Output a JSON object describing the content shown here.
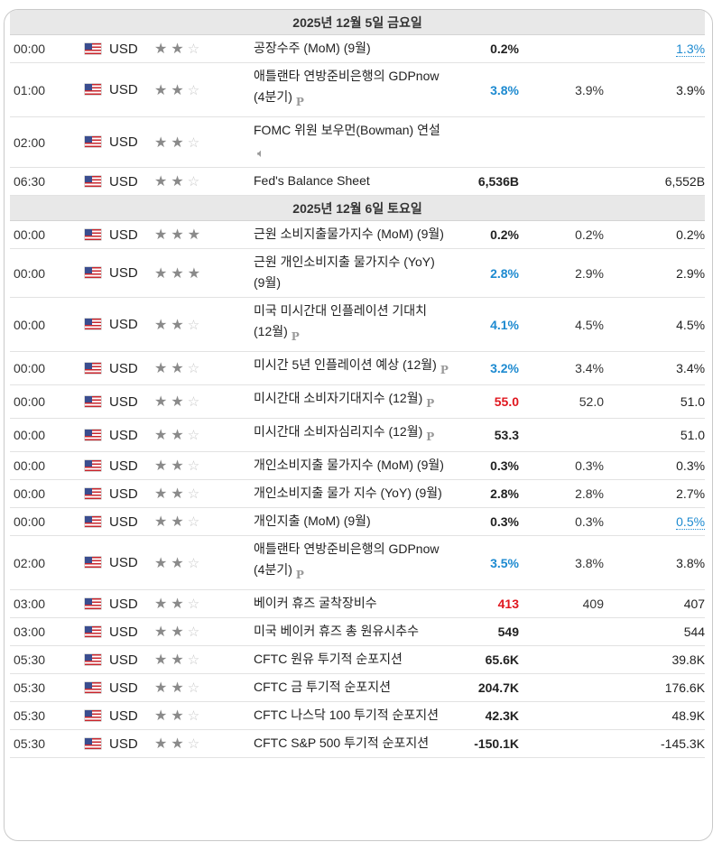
{
  "days": [
    {
      "label": "2025년 12월 5일 금요일",
      "events": [
        {
          "time": "00:00",
          "currency": "USD",
          "stars": 2,
          "name": "공장수주 (MoM) (9월)",
          "marker": "",
          "actual": "0.2%",
          "actual_color": "black",
          "forecast": "",
          "previous": "1.3%",
          "previous_revised": true
        },
        {
          "time": "01:00",
          "currency": "USD",
          "stars": 2,
          "name": "애틀랜타 연방준비은행의 GDPnow (4분기)",
          "marker": "P",
          "actual": "3.8%",
          "actual_color": "blue",
          "forecast": "3.9%",
          "previous": "3.9%",
          "previous_revised": false
        },
        {
          "time": "02:00",
          "currency": "USD",
          "stars": 2,
          "name": "FOMC 위원 보우먼(Bowman) 연설",
          "marker": "speaker",
          "actual": "",
          "actual_color": "black",
          "forecast": "",
          "previous": "",
          "previous_revised": false
        },
        {
          "time": "06:30",
          "currency": "USD",
          "stars": 2,
          "name": "Fed's Balance Sheet",
          "marker": "",
          "actual": "6,536B",
          "actual_color": "black",
          "forecast": "",
          "previous": "6,552B",
          "previous_revised": false
        }
      ]
    },
    {
      "label": "2025년 12월 6일 토요일",
      "events": [
        {
          "time": "00:00",
          "currency": "USD",
          "stars": 3,
          "name": "근원 소비지출물가지수 (MoM) (9월)",
          "marker": "",
          "actual": "0.2%",
          "actual_color": "black",
          "forecast": "0.2%",
          "previous": "0.2%",
          "previous_revised": false
        },
        {
          "time": "00:00",
          "currency": "USD",
          "stars": 3,
          "name": "근원 개인소비지출 물가지수 (YoY) (9월)",
          "marker": "",
          "actual": "2.8%",
          "actual_color": "blue",
          "forecast": "2.9%",
          "previous": "2.9%",
          "previous_revised": false
        },
        {
          "time": "00:00",
          "currency": "USD",
          "stars": 2,
          "name": "미국 미시간대 인플레이션 기대치 (12월)",
          "marker": "P",
          "actual": "4.1%",
          "actual_color": "blue",
          "forecast": "4.5%",
          "previous": "4.5%",
          "previous_revised": false
        },
        {
          "time": "00:00",
          "currency": "USD",
          "stars": 2,
          "name": "미시간 5년 인플레이션 예상 (12월)",
          "marker": "P",
          "actual": "3.2%",
          "actual_color": "blue",
          "forecast": "3.4%",
          "previous": "3.4%",
          "previous_revised": false
        },
        {
          "time": "00:00",
          "currency": "USD",
          "stars": 2,
          "name": "미시간대 소비자기대지수 (12월)",
          "marker": "P",
          "actual": "55.0",
          "actual_color": "red",
          "forecast": "52.0",
          "previous": "51.0",
          "previous_revised": false
        },
        {
          "time": "00:00",
          "currency": "USD",
          "stars": 2,
          "name": "미시간대 소비자심리지수 (12월)",
          "marker": "P",
          "actual": "53.3",
          "actual_color": "black",
          "forecast": "",
          "previous": "51.0",
          "previous_revised": false
        },
        {
          "time": "00:00",
          "currency": "USD",
          "stars": 2,
          "name": "개인소비지출 물가지수 (MoM) (9월)",
          "marker": "",
          "actual": "0.3%",
          "actual_color": "black",
          "forecast": "0.3%",
          "previous": "0.3%",
          "previous_revised": false
        },
        {
          "time": "00:00",
          "currency": "USD",
          "stars": 2,
          "name": "개인소비지출 물가 지수 (YoY) (9월)",
          "marker": "",
          "actual": "2.8%",
          "actual_color": "black",
          "forecast": "2.8%",
          "previous": "2.7%",
          "previous_revised": false
        },
        {
          "time": "00:00",
          "currency": "USD",
          "stars": 2,
          "name": "개인지출 (MoM) (9월)",
          "marker": "",
          "actual": "0.3%",
          "actual_color": "black",
          "forecast": "0.3%",
          "previous": "0.5%",
          "previous_revised": true
        },
        {
          "time": "02:00",
          "currency": "USD",
          "stars": 2,
          "name": "애틀랜타 연방준비은행의 GDPnow (4분기)",
          "marker": "P",
          "actual": "3.5%",
          "actual_color": "blue",
          "forecast": "3.8%",
          "previous": "3.8%",
          "previous_revised": false
        },
        {
          "time": "03:00",
          "currency": "USD",
          "stars": 2,
          "name": "베이커 휴즈 굴착장비수",
          "marker": "",
          "actual": "413",
          "actual_color": "red",
          "forecast": "409",
          "previous": "407",
          "previous_revised": false
        },
        {
          "time": "03:00",
          "currency": "USD",
          "stars": 2,
          "name": "미국 베이커 휴즈 총 원유시추수",
          "marker": "",
          "actual": "549",
          "actual_color": "black",
          "forecast": "",
          "previous": "544",
          "previous_revised": false
        },
        {
          "time": "05:30",
          "currency": "USD",
          "stars": 2,
          "name": "CFTC 원유 투기적 순포지션",
          "marker": "",
          "actual": "65.6K",
          "actual_color": "black",
          "forecast": "",
          "previous": "39.8K",
          "previous_revised": false
        },
        {
          "time": "05:30",
          "currency": "USD",
          "stars": 2,
          "name": "CFTC 금 투기적 순포지션",
          "marker": "",
          "actual": "204.7K",
          "actual_color": "black",
          "forecast": "",
          "previous": "176.6K",
          "previous_revised": false
        },
        {
          "time": "05:30",
          "currency": "USD",
          "stars": 2,
          "name": "CFTC 나스닥 100 투기적 순포지션",
          "marker": "",
          "actual": "42.3K",
          "actual_color": "black",
          "forecast": "",
          "previous": "48.9K",
          "previous_revised": false
        },
        {
          "time": "05:30",
          "currency": "USD",
          "stars": 2,
          "name": "CFTC S&P 500 투기적 순포지션",
          "marker": "",
          "actual": "-150.1K",
          "actual_color": "black",
          "forecast": "",
          "previous": "-145.3K",
          "previous_revised": false
        }
      ]
    }
  ]
}
